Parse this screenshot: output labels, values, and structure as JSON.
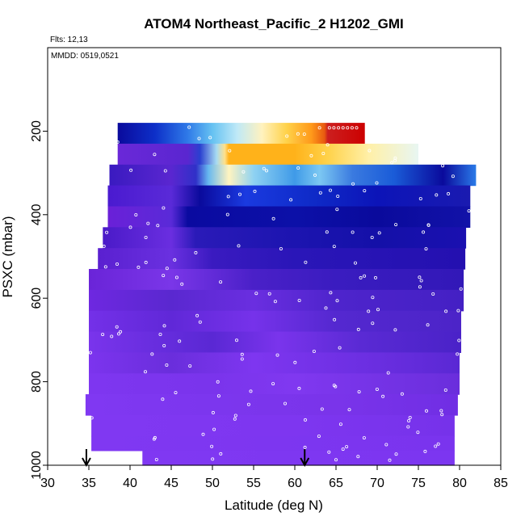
{
  "chart_data": {
    "type": "heatmap",
    "title": "ATOM4 Northeast_Pacific_2 H1202_GMI",
    "annotations": [
      "Flts: 12,13",
      "MMDD: 0519,0521"
    ],
    "xlabel": "Latitude (deg N)",
    "ylabel": "PSXC (mbar)",
    "xlim": [
      30,
      85
    ],
    "ylim": [
      1000,
      0
    ],
    "x_ticks": [
      "30",
      "35",
      "40",
      "45",
      "50",
      "55",
      "60",
      "65",
      "70",
      "75",
      "80",
      "85"
    ],
    "y_ticks": [
      "200",
      "400",
      "600",
      "800",
      "1000"
    ],
    "markers_at_latitude": [
      34.7,
      61.2
    ],
    "color_scale": [
      "#6a0dad",
      "#7e2ef0",
      "#4b2fd6",
      "#1a1ab8",
      "#0a0a9c",
      "#1f5be0",
      "#3fa0f0",
      "#8ed8f5",
      "#fff4c0",
      "#ffd24a",
      "#ff9a1a",
      "#e03a1a",
      "#d00000"
    ],
    "bands": [
      {
        "p0": 180,
        "p1": 230,
        "x0": 38.5,
        "x1": 68.5,
        "stops": [
          [
            38.5,
            "#0a0a9c"
          ],
          [
            43,
            "#0d2fc8"
          ],
          [
            47,
            "#2f7ae8"
          ],
          [
            50,
            "#66c2f2"
          ],
          [
            53,
            "#bfe9f7"
          ],
          [
            56,
            "#fff2bf"
          ],
          [
            59,
            "#ffd24a"
          ],
          [
            62,
            "#ff9a1a"
          ],
          [
            63.6,
            "#e85a10"
          ],
          [
            64,
            "#cc1f1f"
          ],
          [
            68.5,
            "#cc0000"
          ]
        ]
      },
      {
        "p0": 230,
        "p1": 280,
        "x0": 38.5,
        "x1": 75,
        "stops": [
          [
            38.5,
            "#6a28d8"
          ],
          [
            47,
            "#5a26d0"
          ],
          [
            48.5,
            "#2a40d0"
          ],
          [
            50.5,
            "#a6dbf2"
          ],
          [
            51.5,
            "#ffe08a"
          ],
          [
            52,
            "#ffb21a"
          ],
          [
            60,
            "#ffb21a"
          ],
          [
            64,
            "#ffd24a"
          ],
          [
            69,
            "#fff0a8"
          ],
          [
            75,
            "#e8f6f2"
          ]
        ]
      },
      {
        "p0": 280,
        "p1": 330,
        "x0": 37.5,
        "x1": 82,
        "stops": [
          [
            37.5,
            "#3a1ac0"
          ],
          [
            45,
            "#5a26d0"
          ],
          [
            48,
            "#3030c8"
          ],
          [
            49.5,
            "#66b8f0"
          ],
          [
            52,
            "#fff4c0"
          ],
          [
            55,
            "#8fd2f2"
          ],
          [
            60,
            "#3f9ae8"
          ],
          [
            63,
            "#7cc8f2"
          ],
          [
            67,
            "#3a7ae0"
          ],
          [
            72,
            "#1a5cd8"
          ],
          [
            78,
            "#0a0a9c"
          ],
          [
            82,
            "#2a7ae8"
          ]
        ]
      },
      {
        "p0": 330,
        "p1": 380,
        "x0": 37.3,
        "x1": 81.3,
        "stops": [
          [
            37.3,
            "#4a1ad0"
          ],
          [
            45,
            "#5a2ad8"
          ],
          [
            48.5,
            "#0a0a9c"
          ],
          [
            54,
            "#1a3ae0"
          ],
          [
            62,
            "#0f2bc8"
          ],
          [
            70,
            "#0c14b8"
          ],
          [
            81.3,
            "#1a1ab0"
          ]
        ]
      },
      {
        "p0": 380,
        "p1": 430,
        "x0": 37.3,
        "x1": 81.3,
        "stops": [
          [
            37.3,
            "#6a20d8"
          ],
          [
            45,
            "#5a2ad8"
          ],
          [
            47,
            "#0a0aa0"
          ],
          [
            60,
            "#0c10a8"
          ],
          [
            70,
            "#0a0a9c"
          ],
          [
            81.3,
            "#1212a8"
          ]
        ]
      },
      {
        "p0": 430,
        "p1": 480,
        "x0": 36.7,
        "x1": 80.8,
        "stops": [
          [
            36.7,
            "#4a1ac8"
          ],
          [
            45,
            "#6a2ee0"
          ],
          [
            48,
            "#2a1ab8"
          ],
          [
            60,
            "#1c14b0"
          ],
          [
            70,
            "#1410a8"
          ],
          [
            80.8,
            "#1a10b0"
          ]
        ]
      },
      {
        "p0": 480,
        "p1": 530,
        "x0": 36.1,
        "x1": 80.7,
        "stops": [
          [
            36.1,
            "#5a20d0"
          ],
          [
            45,
            "#6a30e0"
          ],
          [
            50,
            "#3a1ac0"
          ],
          [
            60,
            "#2a16b8"
          ],
          [
            80.7,
            "#2410b0"
          ]
        ]
      },
      {
        "p0": 530,
        "p1": 580,
        "x0": 35.0,
        "x1": 80.5,
        "stops": [
          [
            35,
            "#6a24d8"
          ],
          [
            45,
            "#7a36e8"
          ],
          [
            55,
            "#4a20c8"
          ],
          [
            65,
            "#3a1cc0"
          ],
          [
            80.5,
            "#3218b8"
          ]
        ]
      },
      {
        "p0": 580,
        "p1": 630,
        "x0": 35.0,
        "x1": 80.5,
        "stops": [
          [
            35,
            "#6e28e0"
          ],
          [
            45,
            "#5a28d0"
          ],
          [
            55,
            "#6a2ee0"
          ],
          [
            65,
            "#4e24cc"
          ],
          [
            80.5,
            "#4420c4"
          ]
        ]
      },
      {
        "p0": 630,
        "p1": 680,
        "x0": 35.0,
        "x1": 80.2,
        "stops": [
          [
            35,
            "#7430e8"
          ],
          [
            45,
            "#6028d8"
          ],
          [
            55,
            "#7632ea"
          ],
          [
            65,
            "#5428d0"
          ],
          [
            80.2,
            "#4c24c8"
          ]
        ]
      },
      {
        "p0": 680,
        "p1": 730,
        "x0": 35.0,
        "x1": 80.2,
        "stops": [
          [
            35,
            "#7a34ec"
          ],
          [
            42,
            "#6a2ee0"
          ],
          [
            50,
            "#5a28d4"
          ],
          [
            58,
            "#7a34ec"
          ],
          [
            68,
            "#5a2ad4"
          ],
          [
            80.2,
            "#4a22c8"
          ]
        ]
      },
      {
        "p0": 730,
        "p1": 780,
        "x0": 35.0,
        "x1": 80.0,
        "stops": [
          [
            35,
            "#7c34ee"
          ],
          [
            45,
            "#6a2edc"
          ],
          [
            55,
            "#7e36f0"
          ],
          [
            70,
            "#6a2ee0"
          ],
          [
            80,
            "#5a28d4"
          ]
        ]
      },
      {
        "p0": 780,
        "p1": 830,
        "x0": 35.0,
        "x1": 80.0,
        "stops": [
          [
            35,
            "#7e36f0"
          ],
          [
            50,
            "#7a34ec"
          ],
          [
            60,
            "#8038f0"
          ],
          [
            80,
            "#6a2edc"
          ]
        ]
      },
      {
        "p0": 830,
        "p1": 880,
        "x0": 34.6,
        "x1": 79.8,
        "stops": [
          [
            34.6,
            "#8038f2"
          ],
          [
            50,
            "#7c36ee"
          ],
          [
            65,
            "#7a34ea"
          ],
          [
            79.8,
            "#702ee4"
          ]
        ]
      },
      {
        "p0": 880,
        "p1": 930,
        "x0": 35.3,
        "x1": 79.4,
        "stops": [
          [
            35.3,
            "#8038f2"
          ],
          [
            60,
            "#7e36f0"
          ],
          [
            79.4,
            "#7632ea"
          ]
        ]
      },
      {
        "p0": 930,
        "p1": 965,
        "x0": 35.3,
        "x1": 79.4,
        "stops": [
          [
            35.3,
            "#8038f2"
          ],
          [
            79.4,
            "#7a34ee"
          ]
        ]
      },
      {
        "p0": 965,
        "p1": 1000,
        "x0": 41.5,
        "x1": 79.4,
        "stops": [
          [
            41.5,
            "#8038f2"
          ],
          [
            79.4,
            "#7c36f0"
          ]
        ]
      }
    ]
  }
}
